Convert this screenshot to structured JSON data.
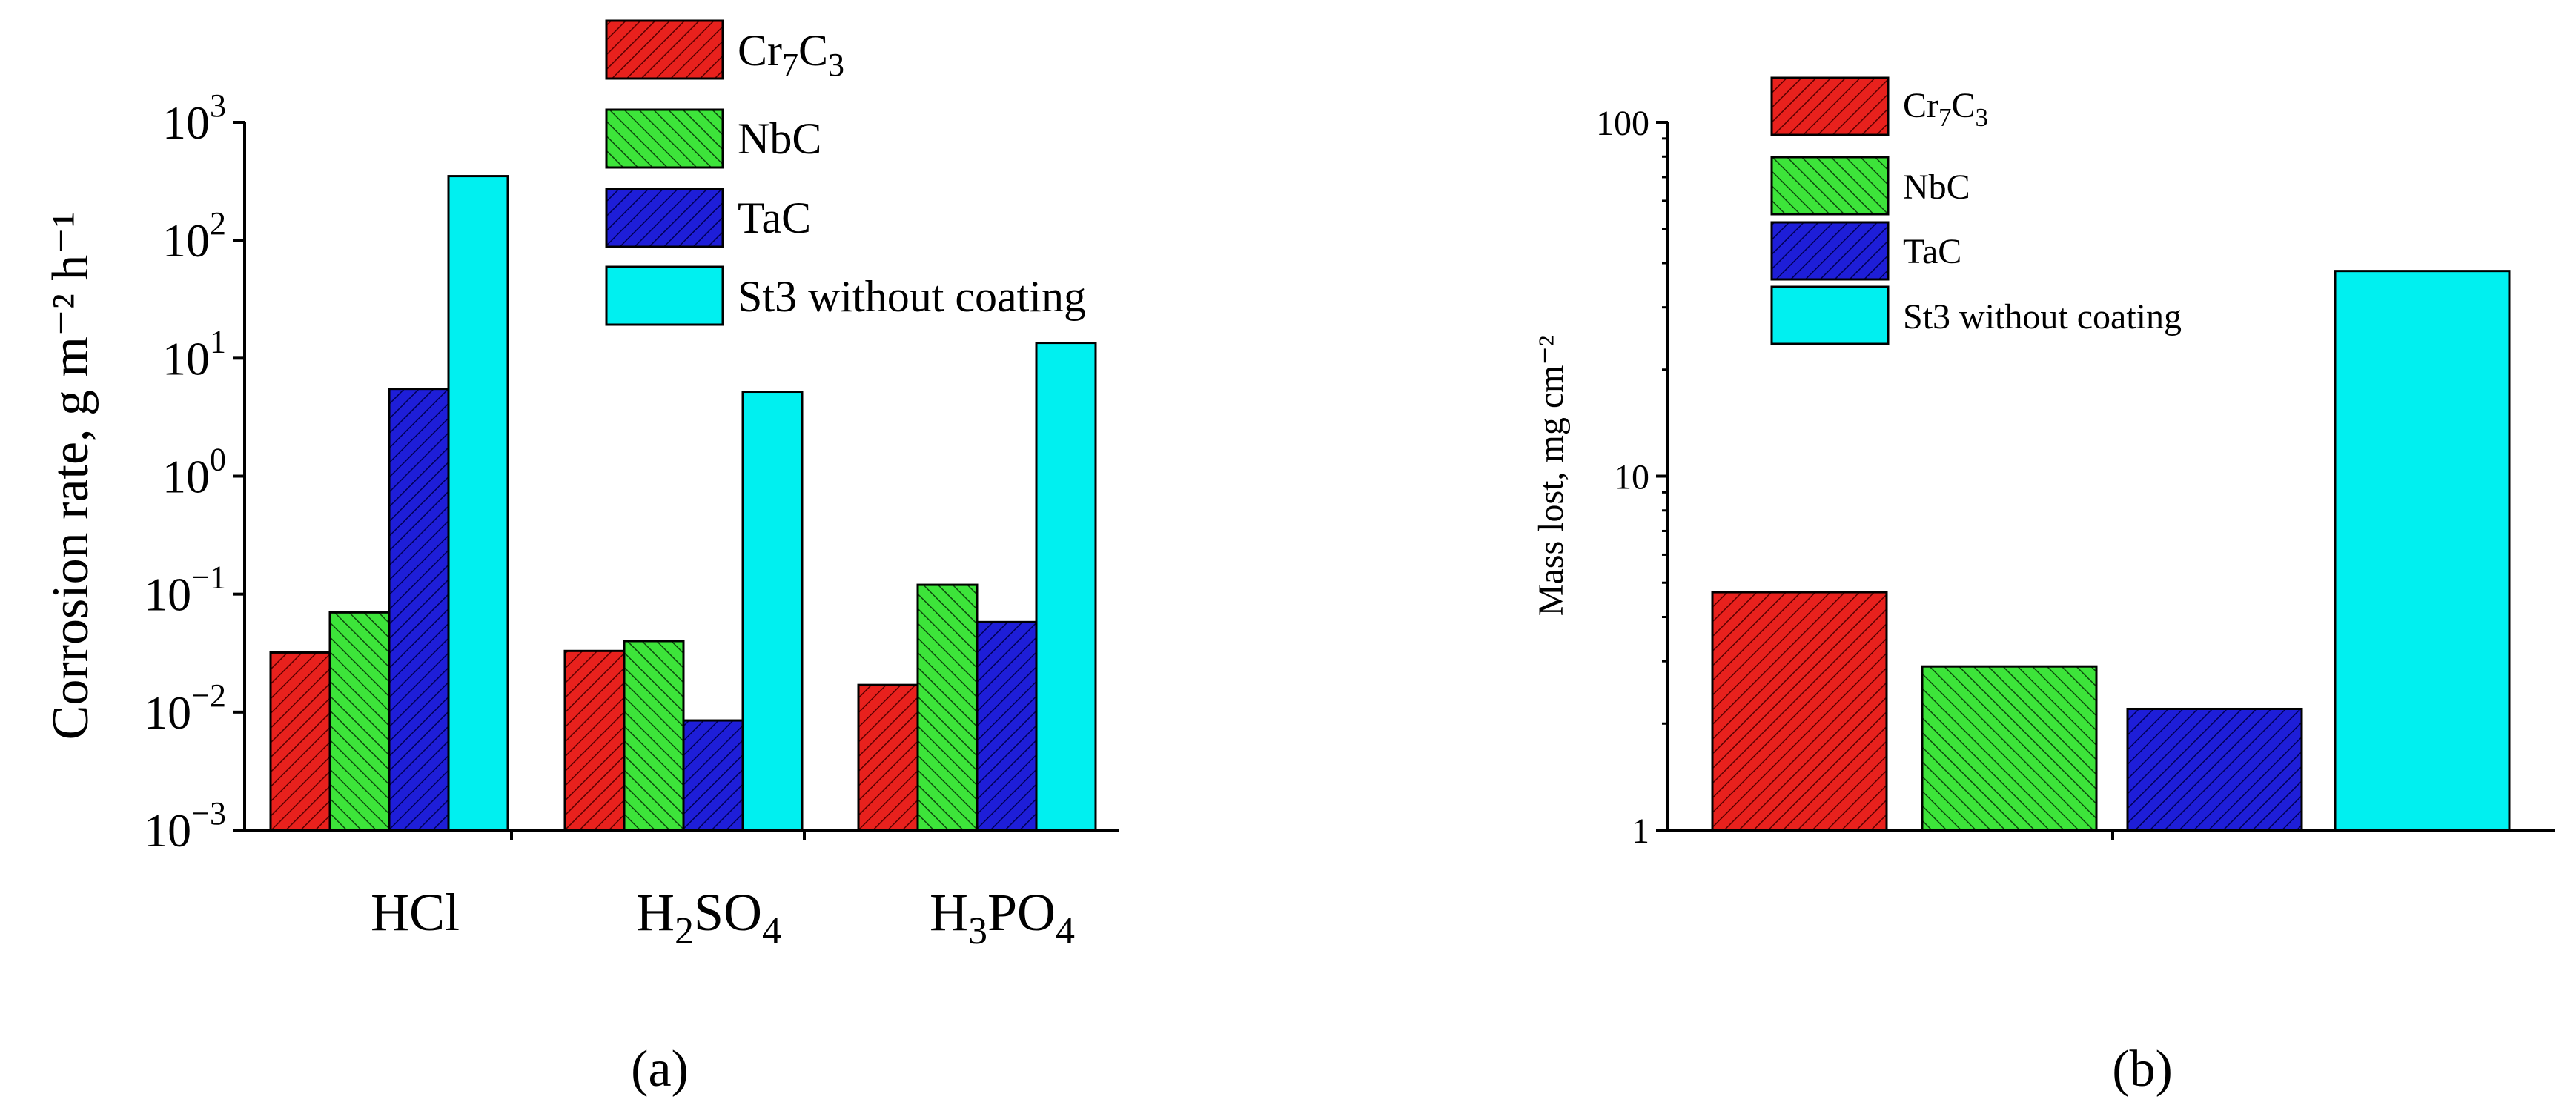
{
  "figure_labels": {
    "a": "(a)",
    "b": "(b)"
  },
  "chart_data": [
    {
      "panel": "a",
      "type": "bar",
      "yscale": "log",
      "ylim": [
        0.001,
        1000
      ],
      "ylabel": "Corrosion rate, g m⁻² h⁻¹",
      "ytick_exponents": [
        "−3",
        "−2",
        "−1",
        "0",
        "1",
        "2",
        "3"
      ],
      "categories": [
        "HCl",
        "H2SO4",
        "H3PO4"
      ],
      "category_labels": [
        {
          "base": "HCl",
          "sub1": "",
          "mid": "",
          "sub2": ""
        },
        {
          "base": "H",
          "sub1": "2",
          "mid": "SO",
          "sub2": "4"
        },
        {
          "base": "H",
          "sub1": "3",
          "mid": "PO",
          "sub2": "4"
        }
      ],
      "series": [
        {
          "name": "Cr7C3",
          "values": [
            0.032,
            0.033,
            0.017
          ]
        },
        {
          "name": "NbC",
          "values": [
            0.07,
            0.04,
            0.12
          ]
        },
        {
          "name": "TaC",
          "values": [
            5.5,
            0.0085,
            0.058
          ]
        },
        {
          "name": "St3 without coating",
          "values": [
            350,
            5.2,
            13.5
          ]
        }
      ],
      "legend_position": "top"
    },
    {
      "panel": "b",
      "type": "bar",
      "yscale": "log",
      "ylim": [
        1,
        100
      ],
      "ylabel": "Mass lost, mg cm⁻²",
      "ytick_labels": [
        "1",
        "10",
        "100"
      ],
      "categories": [
        "Cr7C3",
        "NbC",
        "TaC",
        "St3 without coating"
      ],
      "values": [
        4.7,
        2.9,
        2.2,
        38
      ],
      "legend_position": "top-left"
    }
  ],
  "series_styles": [
    {
      "key": "cr7c3",
      "base": "Cr",
      "sub1": "7",
      "mid": "C",
      "sub2": "3",
      "fill": "#e8211d",
      "stripe": "#5a0000",
      "hatch": "fwd"
    },
    {
      "key": "nbc",
      "base": "NbC",
      "sub1": "",
      "mid": "",
      "sub2": "",
      "fill": "#3de43a",
      "stripe": "#0c4a0c",
      "hatch": "back"
    },
    {
      "key": "tac",
      "base": "TaC",
      "sub1": "",
      "mid": "",
      "sub2": "",
      "fill": "#1e1ed8",
      "stripe": "#000055",
      "hatch": "fwd"
    },
    {
      "key": "st3",
      "base": "St3 without coating",
      "sub1": "",
      "mid": "",
      "sub2": "",
      "fill": "#00f0f0",
      "stripe": "",
      "hatch": "none"
    }
  ]
}
